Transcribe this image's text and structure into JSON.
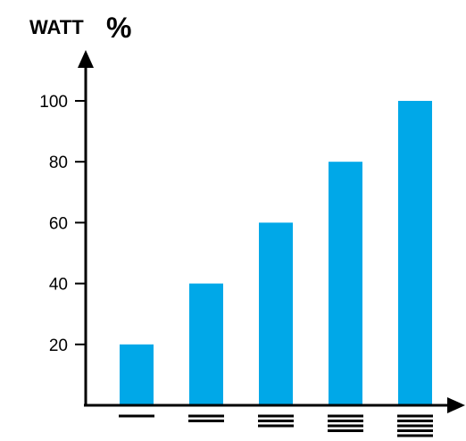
{
  "chart_data": {
    "type": "bar",
    "title": "WATT %",
    "title_parts": {
      "unit": "WATT",
      "symbol": "%"
    },
    "categories": [
      "1 bar",
      "2 bars",
      "3 bars",
      "4 bars",
      "5 bars"
    ],
    "category_icon_lines": [
      1,
      2,
      3,
      4,
      5
    ],
    "values": [
      20,
      40,
      60,
      80,
      100
    ],
    "yticks": [
      20,
      40,
      60,
      80,
      100
    ],
    "ylim": [
      0,
      100
    ],
    "xlabel": "",
    "ylabel": "",
    "grid": false,
    "legend": "none",
    "colors": {
      "bar": "#00a8e8",
      "axis": "#000000",
      "icon": "#000000"
    }
  }
}
